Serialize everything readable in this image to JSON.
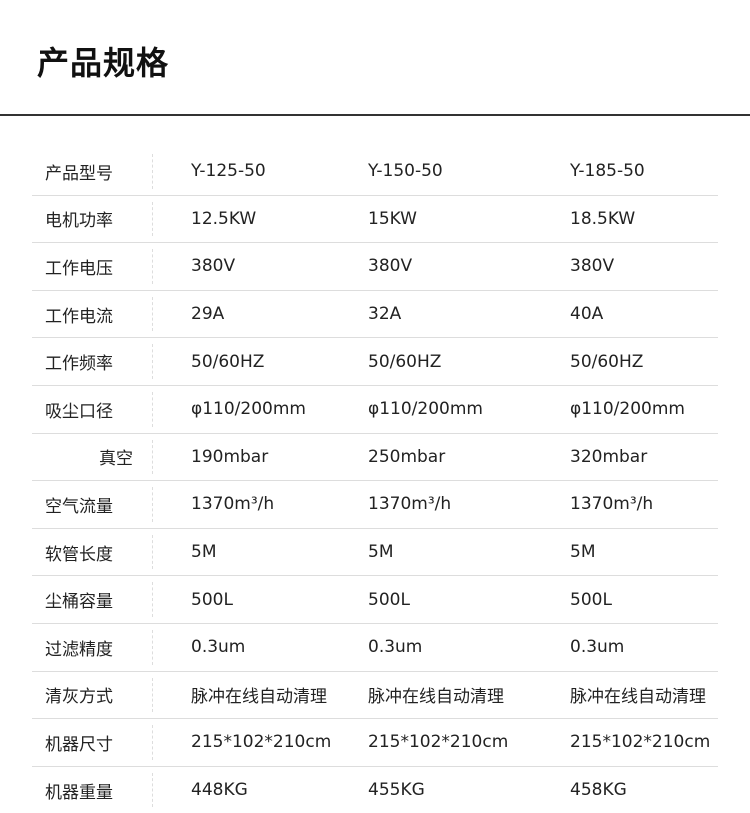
{
  "title": "产品规格",
  "rows": [
    {
      "label": "产品型号",
      "values": [
        "Y-125-50",
        "Y-150-50",
        "Y-185-50"
      ]
    },
    {
      "label": "电机功率",
      "values": [
        "12.5KW",
        "15KW",
        "18.5KW"
      ]
    },
    {
      "label": "工作电压",
      "values": [
        "380V",
        "380V",
        "380V"
      ]
    },
    {
      "label": "工作电流",
      "values": [
        "29A",
        "32A",
        "40A"
      ]
    },
    {
      "label": "工作频率",
      "values": [
        "50/60HZ",
        "50/60HZ",
        "50/60HZ"
      ]
    },
    {
      "label": "吸尘口径",
      "values": [
        "φ110/200mm",
        "φ110/200mm",
        "φ110/200mm"
      ]
    },
    {
      "label": "真空",
      "values": [
        "190mbar",
        "250mbar",
        "320mbar"
      ]
    },
    {
      "label": "空气流量",
      "values": [
        "1370m³/h",
        "1370m³/h",
        "1370m³/h"
      ]
    },
    {
      "label": "软管长度",
      "values": [
        "5M",
        "5M",
        "5M"
      ]
    },
    {
      "label": "尘桶容量",
      "values": [
        "500L",
        "500L",
        "500L"
      ]
    },
    {
      "label": "过滤精度",
      "values": [
        "0.3um",
        "0.3um",
        "0.3um"
      ]
    },
    {
      "label": "清灰方式",
      "values": [
        "脉冲在线自动清理",
        "脉冲在线自动清理",
        "脉冲在线自动清理"
      ]
    },
    {
      "label": "机器尺寸",
      "values": [
        "215*102*210cm",
        "215*102*210cm",
        "215*102*210cm"
      ]
    },
    {
      "label": "机器重量",
      "values": [
        "448KG",
        "455KG",
        "458KG"
      ]
    }
  ]
}
